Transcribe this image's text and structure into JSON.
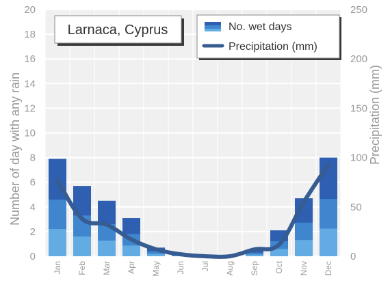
{
  "colors": {
    "plot_background": "#f0f0f0",
    "gridline": "#ffffff",
    "axis_text": "#999999",
    "bar_dark": "#2f5fb0",
    "bar_mid": "#3f86cf",
    "bar_light": "#63ace3",
    "line": "#365c92"
  },
  "chart_data": {
    "type": "bar",
    "title": "Larnaca, Cyprus",
    "categories": [
      "Jan",
      "Feb",
      "Mar",
      "Apr",
      "May",
      "Jun",
      "Jul",
      "Aug",
      "Sep",
      "Oct",
      "Nov",
      "Dec"
    ],
    "series": [
      {
        "name": "No. wet days",
        "type": "bar",
        "axis": "left",
        "values": [
          7.9,
          5.7,
          4.5,
          3.1,
          0.7,
          0.1,
          0,
          0,
          0.5,
          2.1,
          4.7,
          8.0
        ]
      },
      {
        "name": "Precipitation (mm)",
        "type": "line",
        "axis": "right",
        "values": [
          77,
          38,
          32,
          17,
          7,
          2,
          0,
          0,
          7,
          12,
          55,
          93
        ]
      }
    ],
    "ylabel": "Number of day with any rain",
    "ylabel_right": "Precipitation (mm)",
    "ylim": [
      0,
      20
    ],
    "ylim_right": [
      0,
      250
    ],
    "yticks": [
      "0",
      "2",
      "4",
      "6",
      "8",
      "10",
      "12",
      "14",
      "16",
      "18",
      "20"
    ],
    "yticks_right": [
      "0",
      "50",
      "100",
      "150",
      "200",
      "250"
    ],
    "grid": true,
    "legend": "top-right"
  }
}
